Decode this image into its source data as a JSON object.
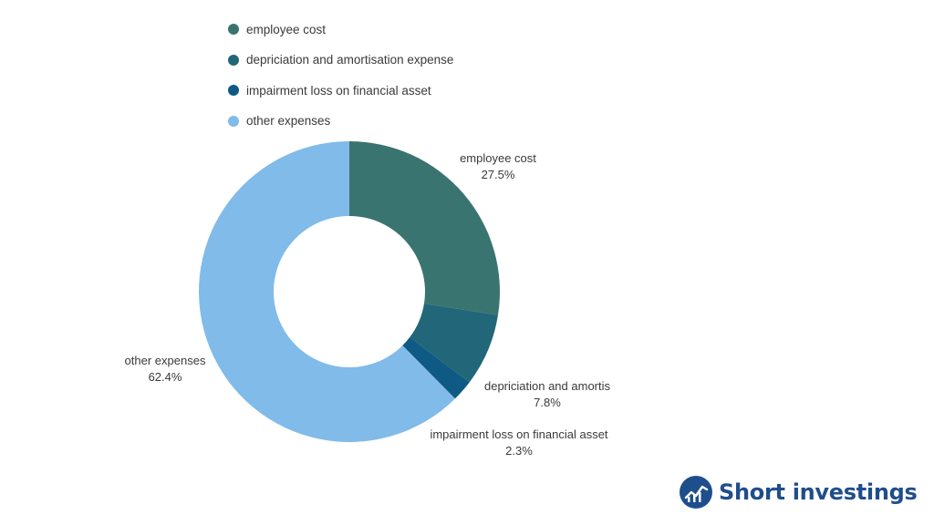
{
  "brand": {
    "name": "Short investings",
    "color": "#1f4e8c"
  },
  "chart_data": {
    "type": "pie",
    "donut": true,
    "legend_position": "top",
    "slices": [
      {
        "name": "employee cost",
        "label": "employee cost",
        "value": 27.5,
        "value_label": "27.5%",
        "color": "#3a7470"
      },
      {
        "name": "depriciation and amortisation expense",
        "label": "depriciation and amortis",
        "value": 7.8,
        "value_label": "7.8%",
        "color": "#22667a"
      },
      {
        "name": "impairment loss on financial asset",
        "label": "impairment loss on financial asset",
        "value": 2.3,
        "value_label": "2.3%",
        "color": "#0e5a84"
      },
      {
        "name": "other expenses",
        "label": "other expenses",
        "value": 62.4,
        "value_label": "62.4%",
        "color": "#80bbea"
      }
    ]
  }
}
